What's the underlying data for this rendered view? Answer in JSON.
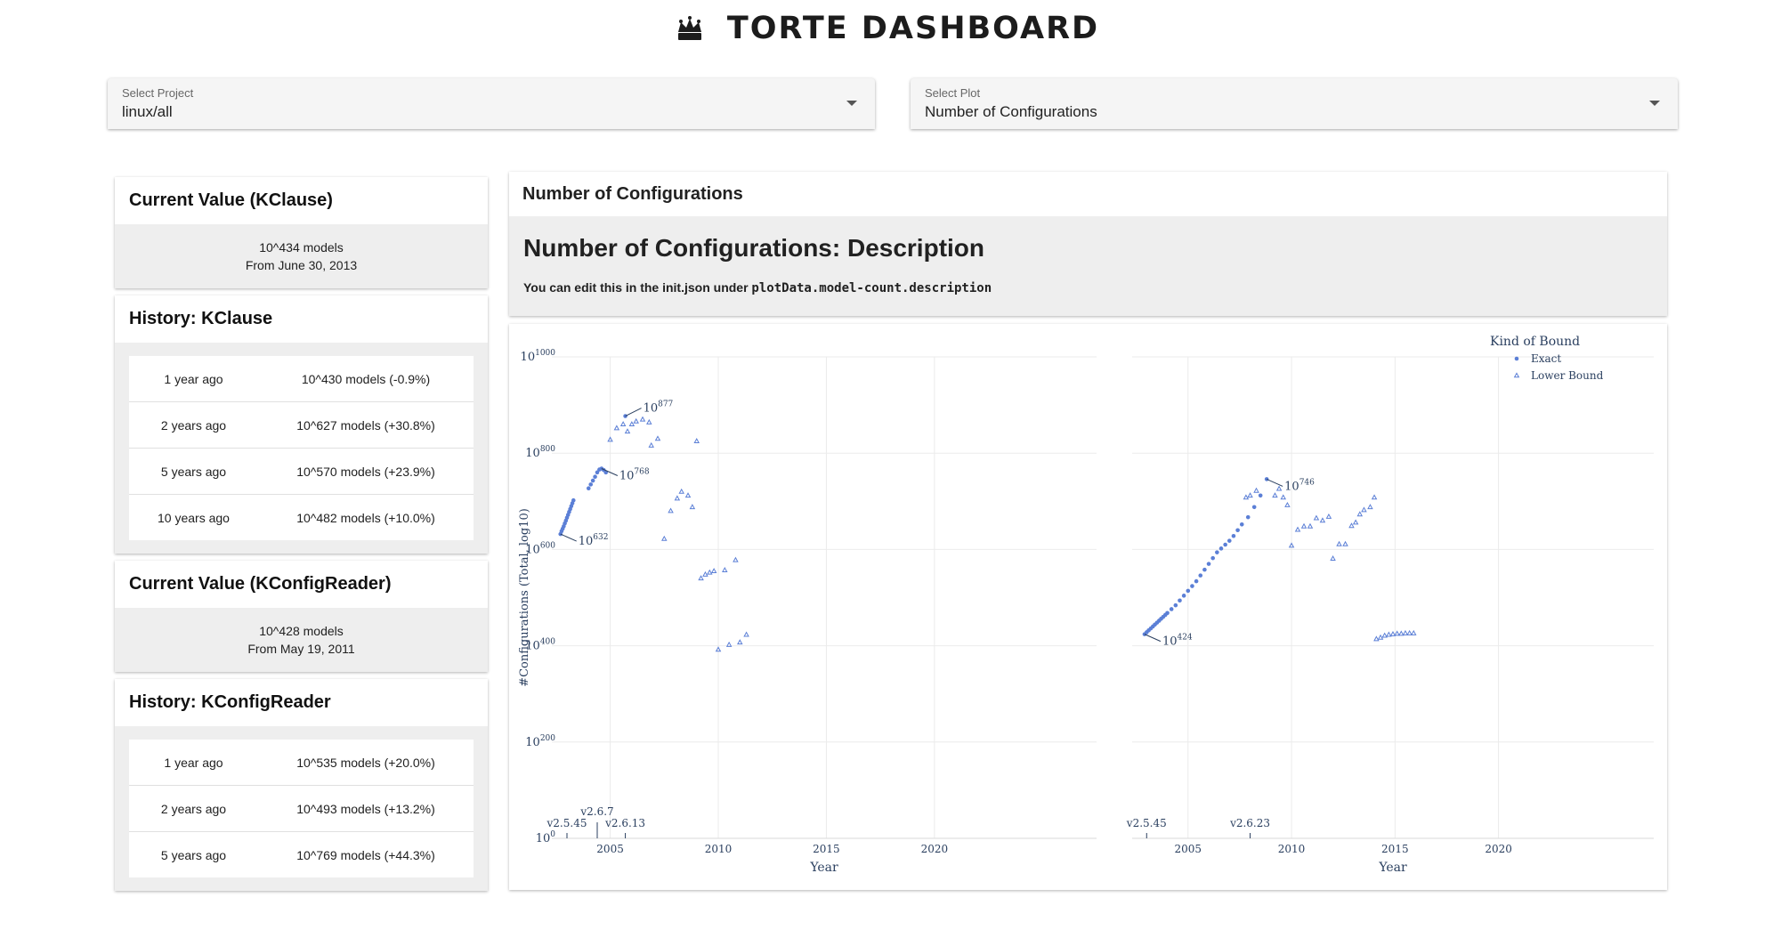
{
  "app": {
    "title": "TORTE DASHBOARD",
    "logo_icon": "crown-icon"
  },
  "selects": {
    "project": {
      "label": "Select Project",
      "value": "linux/all"
    },
    "plot": {
      "label": "Select Plot",
      "value": "Number of Configurations"
    }
  },
  "kclause": {
    "current_title": "Current Value (KClause)",
    "current_value": "10^434 models",
    "current_date": "From June 30, 2013",
    "history_title": "History: KClause",
    "history": [
      {
        "when": "1 year ago",
        "value": "10^430 models (-0.9%)"
      },
      {
        "when": "2 years ago",
        "value": "10^627 models (+30.8%)"
      },
      {
        "when": "5 years ago",
        "value": "10^570 models (+23.9%)"
      },
      {
        "when": "10 years ago",
        "value": "10^482 models (+10.0%)"
      }
    ]
  },
  "kconfigreader": {
    "current_title": "Current Value (KConfigReader)",
    "current_value": "10^428 models",
    "current_date": "From May 19, 2011",
    "history_title": "History: KConfigReader",
    "history": [
      {
        "when": "1 year ago",
        "value": "10^535 models (+20.0%)"
      },
      {
        "when": "2 years ago",
        "value": "10^493 models (+13.2%)"
      },
      {
        "when": "5 years ago",
        "value": "10^769 models (+44.3%)"
      }
    ]
  },
  "description": {
    "card_title": "Number of Configurations",
    "heading": "Number of Configurations: Description",
    "text": "You can edit this in the init.json under ",
    "code": "plotData.model-count.description"
  },
  "chart_data": {
    "type": "scatter",
    "xlabel": "Year",
    "ylabel": "#Configurations (Total, log10)",
    "x_ticks": [
      "2005",
      "2010",
      "2015",
      "2020"
    ],
    "y_tick_exponents": [
      0,
      200,
      400,
      600,
      800,
      1000
    ],
    "y_scale": "log",
    "legend": {
      "title": "Kind of Bound",
      "position": "top-right",
      "items": [
        "Exact",
        "Lower Bound"
      ]
    },
    "color": "#5b7fd6",
    "panels": [
      {
        "name": "left",
        "xlim": [
          2002.3,
          2027.5
        ],
        "ylim": [
          0,
          1000
        ],
        "exact": [
          [
            2002.7,
            632
          ],
          [
            2002.75,
            638
          ],
          [
            2002.8,
            643
          ],
          [
            2002.85,
            648
          ],
          [
            2002.9,
            654
          ],
          [
            2002.95,
            660
          ],
          [
            2003.0,
            666
          ],
          [
            2003.05,
            672
          ],
          [
            2003.1,
            678
          ],
          [
            2003.15,
            684
          ],
          [
            2003.2,
            690
          ],
          [
            2003.25,
            696
          ],
          [
            2003.3,
            702
          ],
          [
            2004.0,
            727
          ],
          [
            2004.1,
            735
          ],
          [
            2004.2,
            743
          ],
          [
            2004.3,
            751
          ],
          [
            2004.4,
            760
          ],
          [
            2004.5,
            766
          ],
          [
            2004.6,
            768
          ],
          [
            2004.7,
            765
          ],
          [
            2004.8,
            760
          ],
          [
            2005.7,
            877
          ]
        ],
        "lower": [
          [
            2005.0,
            828
          ],
          [
            2005.3,
            852
          ],
          [
            2005.6,
            860
          ],
          [
            2005.8,
            845
          ],
          [
            2006.0,
            860
          ],
          [
            2006.2,
            866
          ],
          [
            2006.5,
            870
          ],
          [
            2006.8,
            864
          ],
          [
            2006.9,
            816
          ],
          [
            2007.2,
            830
          ],
          [
            2007.5,
            622
          ],
          [
            2007.8,
            680
          ],
          [
            2008.1,
            706
          ],
          [
            2008.3,
            720
          ],
          [
            2008.6,
            712
          ],
          [
            2008.8,
            688
          ],
          [
            2009.0,
            825
          ],
          [
            2009.2,
            540
          ],
          [
            2009.4,
            548
          ],
          [
            2009.6,
            552
          ],
          [
            2009.8,
            555
          ],
          [
            2010.0,
            392
          ],
          [
            2010.3,
            557
          ],
          [
            2010.5,
            402
          ],
          [
            2010.8,
            578
          ],
          [
            2011.0,
            407
          ],
          [
            2011.3,
            423
          ]
        ],
        "annotations": [
          {
            "x": 2005.7,
            "y": 877,
            "exp": "877"
          },
          {
            "x": 2004.6,
            "y": 768,
            "exp": "768"
          },
          {
            "x": 2002.7,
            "y": 632,
            "exp": "632"
          }
        ],
        "versions": [
          {
            "x": 2003.0,
            "label": "v2.5.45"
          },
          {
            "x": 2004.4,
            "label": "v2.6.7"
          },
          {
            "x": 2005.7,
            "label": "v2.6.13"
          }
        ]
      },
      {
        "name": "right",
        "xlim": [
          2002.3,
          2027.5
        ],
        "ylim": [
          0,
          1000
        ],
        "exact": [
          [
            2002.9,
            424
          ],
          [
            2003.0,
            428
          ],
          [
            2003.1,
            432
          ],
          [
            2003.2,
            436
          ],
          [
            2003.3,
            440
          ],
          [
            2003.4,
            444
          ],
          [
            2003.5,
            448
          ],
          [
            2003.6,
            452
          ],
          [
            2003.7,
            456
          ],
          [
            2003.8,
            460
          ],
          [
            2003.9,
            464
          ],
          [
            2004.0,
            468
          ],
          [
            2004.2,
            476
          ],
          [
            2004.4,
            484
          ],
          [
            2004.6,
            494
          ],
          [
            2004.8,
            504
          ],
          [
            2005.0,
            514
          ],
          [
            2005.2,
            524
          ],
          [
            2005.4,
            534
          ],
          [
            2005.6,
            546
          ],
          [
            2005.8,
            558
          ],
          [
            2006.0,
            570
          ],
          [
            2006.2,
            582
          ],
          [
            2006.4,
            594
          ],
          [
            2006.6,
            602
          ],
          [
            2006.8,
            610
          ],
          [
            2007.0,
            618
          ],
          [
            2007.2,
            628
          ],
          [
            2007.4,
            640
          ],
          [
            2007.6,
            652
          ],
          [
            2007.9,
            667
          ],
          [
            2008.2,
            688
          ],
          [
            2008.5,
            712
          ],
          [
            2008.8,
            746
          ]
        ],
        "lower": [
          [
            2007.8,
            708
          ],
          [
            2008.0,
            712
          ],
          [
            2008.3,
            722
          ],
          [
            2009.2,
            712
          ],
          [
            2009.4,
            726
          ],
          [
            2009.6,
            708
          ],
          [
            2009.8,
            692
          ],
          [
            2010.0,
            608
          ],
          [
            2010.3,
            641
          ],
          [
            2010.6,
            648
          ],
          [
            2010.9,
            648
          ],
          [
            2011.2,
            665
          ],
          [
            2011.5,
            660
          ],
          [
            2011.8,
            668
          ],
          [
            2012.0,
            581
          ],
          [
            2012.3,
            611
          ],
          [
            2012.6,
            611
          ],
          [
            2012.9,
            649
          ],
          [
            2013.1,
            656
          ],
          [
            2013.3,
            673
          ],
          [
            2013.5,
            682
          ],
          [
            2013.8,
            688
          ],
          [
            2014.0,
            708
          ],
          [
            2014.1,
            414
          ],
          [
            2014.3,
            417
          ],
          [
            2014.5,
            421
          ],
          [
            2014.7,
            423
          ],
          [
            2014.9,
            424
          ],
          [
            2015.1,
            425
          ],
          [
            2015.3,
            425
          ],
          [
            2015.5,
            426
          ],
          [
            2015.7,
            426
          ],
          [
            2015.9,
            426
          ]
        ],
        "annotations": [
          {
            "x": 2008.8,
            "y": 746,
            "exp": "746"
          },
          {
            "x": 2002.9,
            "y": 424,
            "exp": "424"
          }
        ],
        "versions": [
          {
            "x": 2003.0,
            "label": "v2.5.45"
          },
          {
            "x": 2008.0,
            "label": "v2.6.23"
          }
        ]
      }
    ]
  }
}
